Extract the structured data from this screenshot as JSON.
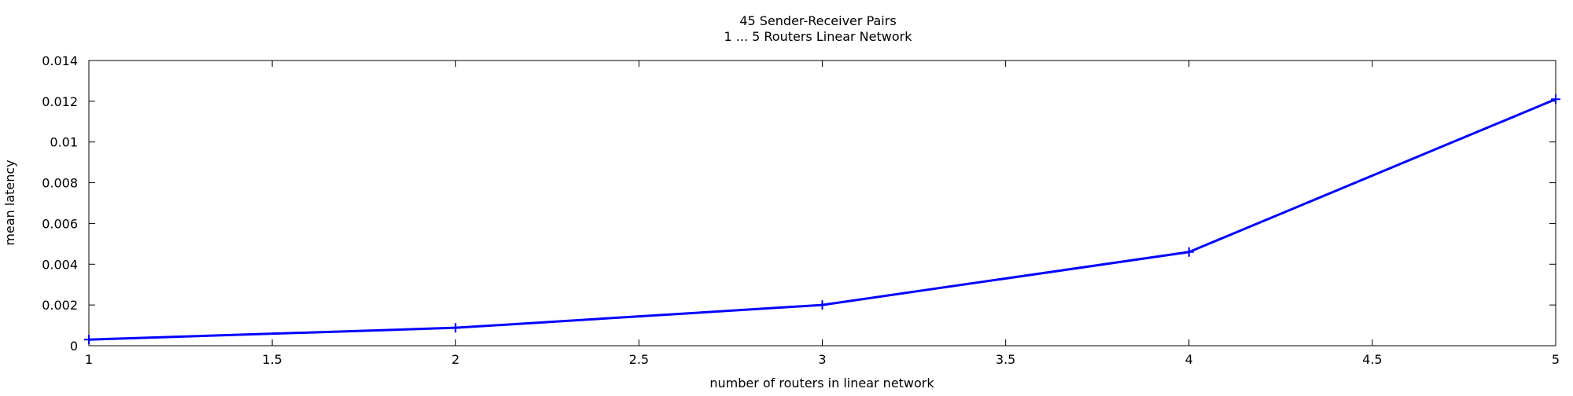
{
  "chart_data": {
    "type": "line",
    "title": "45 Sender-Receiver Pairs",
    "subtitle": "1 ... 5 Routers Linear Network",
    "xlabel": "number of routers in linear network",
    "ylabel": "mean latency",
    "xlim": [
      1,
      5
    ],
    "ylim": [
      0,
      0.014
    ],
    "xticks": [
      "1",
      "1.5",
      "2",
      "2.5",
      "3",
      "3.5",
      "4",
      "4.5",
      "5"
    ],
    "yticks": [
      "0",
      "0.002",
      "0.004",
      "0.006",
      "0.008",
      "0.01",
      "0.012",
      "0.014"
    ],
    "grid": false,
    "legend": "none",
    "series": [
      {
        "color": "#0000ff",
        "marker": "plus",
        "x": [
          1,
          2,
          3,
          4,
          5
        ],
        "y": [
          0.0003,
          0.00088,
          0.002,
          0.0046,
          0.0121
        ]
      }
    ]
  }
}
